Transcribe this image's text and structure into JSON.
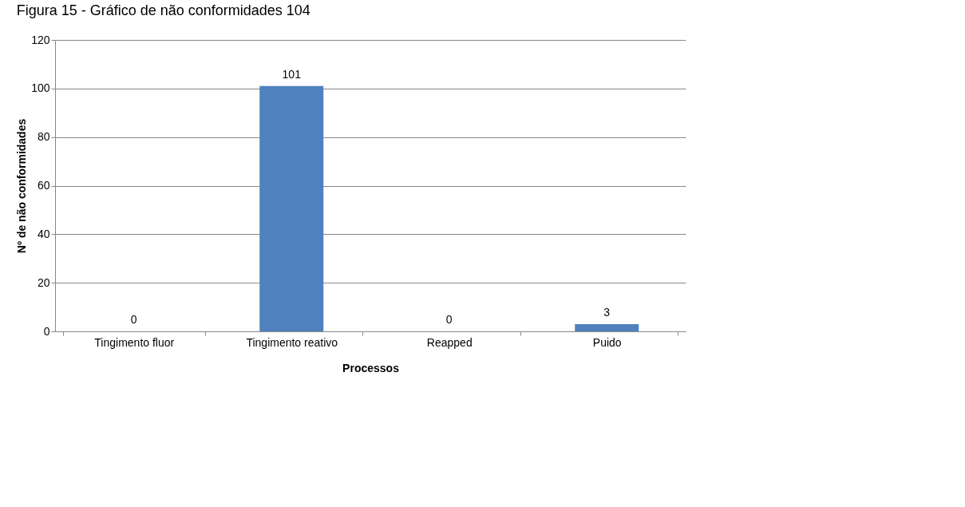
{
  "chart_data": {
    "type": "bar",
    "title": "Figura 15 - Gráfico de não conformidades 104",
    "xlabel": "Processos",
    "ylabel": "Nº de não conformidades",
    "categories": [
      "Tingimento fluor",
      "Tingimento reativo",
      "Reapped",
      "Puido"
    ],
    "values": [
      0,
      101,
      0,
      3
    ],
    "color": "#4f81bd",
    "ylim": [
      0,
      120
    ],
    "yticks": [
      0,
      20,
      40,
      60,
      80,
      100,
      120
    ],
    "grid": "y",
    "data_labels": true
  }
}
